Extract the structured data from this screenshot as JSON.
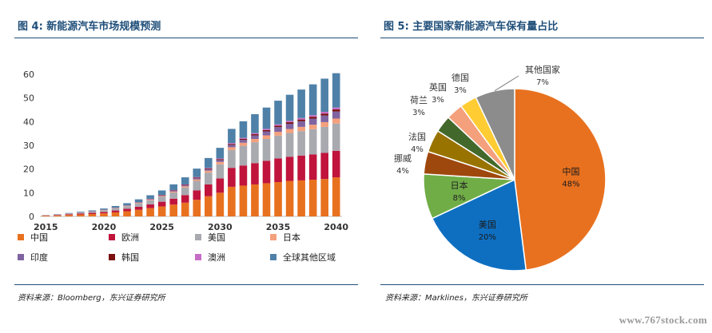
{
  "left": {
    "title": "图 4: 新能源汽车市场规模预测",
    "source": "资料来源：Bloomberg，东兴证券研究所"
  },
  "right": {
    "title": "图 5: 主要国家新能源汽车保有量占比",
    "source": "资料来源：Marklines，东兴证券研究所"
  },
  "watermark": "www.767stock.com",
  "chart_data": [
    {
      "type": "bar",
      "stacked": true,
      "categories": [
        "2015",
        "2016",
        "2017",
        "2018",
        "2019",
        "2020",
        "2021",
        "2022",
        "2023",
        "2024",
        "2025",
        "2026",
        "2027",
        "2028",
        "2029",
        "2030",
        "2031",
        "2032",
        "2033",
        "2034",
        "2035",
        "2036",
        "2037",
        "2038",
        "2039",
        "2040"
      ],
      "xticks": [
        "2015",
        "2020",
        "2025",
        "2030",
        "2035",
        "2040"
      ],
      "yticks": [
        "0",
        "10",
        "20",
        "30",
        "40",
        "50",
        "60"
      ],
      "ylim": [
        0,
        60
      ],
      "legend_position": "bottom",
      "series": [
        {
          "name": "中国",
          "color": "#e8711f",
          "values": [
            0.3,
            0.4,
            0.6,
            0.8,
            1.0,
            1.3,
            1.7,
            2.2,
            2.8,
            3.5,
            4.2,
            5.0,
            5.8,
            7.0,
            8.5,
            10.0,
            12.5,
            13.0,
            13.5,
            14.0,
            14.5,
            15.0,
            15.2,
            15.5,
            15.8,
            16.5
          ]
        },
        {
          "name": "欧洲",
          "color": "#c0143c",
          "values": [
            0.1,
            0.2,
            0.3,
            0.4,
            0.5,
            0.6,
            0.8,
            1.0,
            1.3,
            1.6,
            2.0,
            2.5,
            3.2,
            4.0,
            5.0,
            6.0,
            8.0,
            8.5,
            9.0,
            9.5,
            10.0,
            10.2,
            10.5,
            10.7,
            11.0,
            11.2
          ]
        },
        {
          "name": "美国",
          "color": "#a9a9b0",
          "values": [
            0.1,
            0.2,
            0.3,
            0.4,
            0.5,
            0.7,
            0.9,
            1.1,
            1.4,
            1.7,
            2.1,
            2.6,
            3.2,
            4.0,
            5.0,
            6.0,
            7.5,
            8.3,
            8.8,
            9.2,
            9.6,
            10.0,
            10.3,
            10.6,
            11.0,
            11.5
          ]
        },
        {
          "name": "日本",
          "color": "#f4a07c",
          "values": [
            0.02,
            0.03,
            0.04,
            0.06,
            0.08,
            0.1,
            0.12,
            0.15,
            0.2,
            0.25,
            0.3,
            0.4,
            0.5,
            0.6,
            0.8,
            1.0,
            1.2,
            1.3,
            1.4,
            1.5,
            1.6,
            1.7,
            1.8,
            1.9,
            2.0,
            2.1
          ]
        },
        {
          "name": "印度",
          "color": "#8064a2",
          "values": [
            0.01,
            0.01,
            0.02,
            0.03,
            0.04,
            0.05,
            0.07,
            0.1,
            0.13,
            0.17,
            0.2,
            0.3,
            0.4,
            0.5,
            0.6,
            0.8,
            1.0,
            1.2,
            1.5,
            1.7,
            2.0,
            2.2,
            2.4,
            2.6,
            2.8,
            3.0
          ]
        },
        {
          "name": "韩国",
          "color": "#7b1010",
          "values": [
            0.01,
            0.01,
            0.02,
            0.03,
            0.04,
            0.05,
            0.06,
            0.08,
            0.1,
            0.12,
            0.15,
            0.18,
            0.22,
            0.26,
            0.3,
            0.35,
            0.4,
            0.45,
            0.5,
            0.55,
            0.6,
            0.65,
            0.7,
            0.75,
            0.8,
            0.85
          ]
        },
        {
          "name": "澳洲",
          "color": "#c66dc6",
          "values": [
            0.01,
            0.01,
            0.01,
            0.02,
            0.03,
            0.04,
            0.05,
            0.06,
            0.08,
            0.1,
            0.12,
            0.15,
            0.18,
            0.22,
            0.26,
            0.3,
            0.35,
            0.4,
            0.45,
            0.5,
            0.55,
            0.6,
            0.65,
            0.7,
            0.75,
            0.8
          ]
        },
        {
          "name": "全球其他区域",
          "color": "#4f81a8",
          "values": [
            0.05,
            0.1,
            0.15,
            0.25,
            0.35,
            0.5,
            0.7,
            0.9,
            1.2,
            1.5,
            1.9,
            2.4,
            3.0,
            3.6,
            4.2,
            4.5,
            6.0,
            7.0,
            8.0,
            9.0,
            10.0,
            11.0,
            12.0,
            13.0,
            14.0,
            14.5
          ]
        }
      ]
    },
    {
      "type": "pie",
      "legend_position": "none",
      "slices": [
        {
          "label": "中国",
          "value": 48,
          "display": "48%",
          "color": "#e8711f",
          "inside": true
        },
        {
          "label": "美国",
          "value": 20,
          "display": "20%",
          "color": "#0e6fc1",
          "inside": true
        },
        {
          "label": "日本",
          "value": 8,
          "display": "8%",
          "color": "#70ad47",
          "inside": true
        },
        {
          "label": "挪威",
          "value": 4,
          "display": "4%",
          "color": "#9e480e",
          "inside": false
        },
        {
          "label": "法国",
          "value": 4,
          "display": "4%",
          "color": "#997300",
          "inside": false
        },
        {
          "label": "荷兰",
          "value": 3,
          "display": "3%",
          "color": "#43682b",
          "inside": false
        },
        {
          "label": "英国",
          "value": 3,
          "display": "3%",
          "color": "#f4a07c",
          "inside": false
        },
        {
          "label": "德国",
          "value": 3,
          "display": "3%",
          "color": "#ffcc33",
          "inside": false
        },
        {
          "label": "其他国家",
          "value": 7,
          "display": "7%",
          "color": "#8c8c8c",
          "inside": false
        }
      ]
    }
  ]
}
